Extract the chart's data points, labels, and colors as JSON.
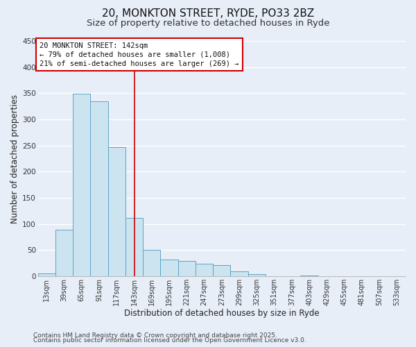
{
  "title1": "20, MONKTON STREET, RYDE, PO33 2BZ",
  "title2": "Size of property relative to detached houses in Ryde",
  "xlabel": "Distribution of detached houses by size in Ryde",
  "ylabel": "Number of detached properties",
  "categories": [
    "13sqm",
    "39sqm",
    "65sqm",
    "91sqm",
    "117sqm",
    "143sqm",
    "169sqm",
    "195sqm",
    "221sqm",
    "247sqm",
    "273sqm",
    "299sqm",
    "325sqm",
    "351sqm",
    "377sqm",
    "403sqm",
    "429sqm",
    "455sqm",
    "481sqm",
    "507sqm",
    "533sqm"
  ],
  "values": [
    6,
    89,
    349,
    335,
    247,
    112,
    50,
    32,
    30,
    24,
    21,
    9,
    4,
    0,
    0,
    1,
    0,
    0,
    0,
    0,
    0
  ],
  "bar_color": "#cce4f0",
  "bar_edge_color": "#5ba3c9",
  "background_color": "#e8eef8",
  "grid_color": "#ffffff",
  "annotation_line1": "20 MONKTON STREET: 142sqm",
  "annotation_line2": "← 79% of detached houses are smaller (1,008)",
  "annotation_line3": "21% of semi-detached houses are larger (269) →",
  "annotation_box_color": "#ffffff",
  "annotation_box_edge_color": "#cc0000",
  "vline_x_index": 5,
  "vline_color": "#cc0000",
  "ylim": [
    0,
    450
  ],
  "yticks": [
    0,
    50,
    100,
    150,
    200,
    250,
    300,
    350,
    400,
    450
  ],
  "footer1": "Contains HM Land Registry data © Crown copyright and database right 2025.",
  "footer2": "Contains public sector information licensed under the Open Government Licence v3.0.",
  "title_fontsize": 11,
  "subtitle_fontsize": 9.5,
  "axis_label_fontsize": 8.5,
  "tick_fontsize": 7,
  "annotation_fontsize": 7.5,
  "footer_fontsize": 6.5
}
